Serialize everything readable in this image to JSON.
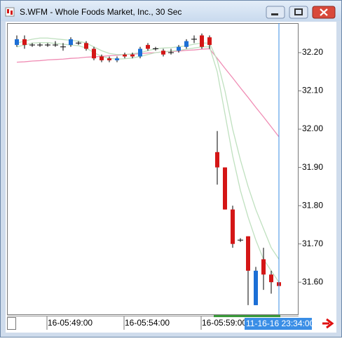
{
  "window": {
    "title": "S.WFM - Whole Foods Market, Inc., 30 Sec"
  },
  "chart_data": {
    "type": "candlestick",
    "categories": [
      null,
      null,
      null,
      null,
      "16-05:49:00",
      null,
      null,
      null,
      null,
      null,
      null,
      null,
      null,
      null,
      "16-05:54:00",
      null,
      null,
      null,
      null,
      null,
      null,
      null,
      null,
      null,
      "16-05:59:00",
      null,
      null,
      null,
      null,
      null,
      null,
      null,
      null,
      null,
      null
    ],
    "open": [
      32.22,
      32.235,
      32.22,
      32.22,
      32.22,
      32.22,
      32.215,
      32.22,
      32.225,
      32.225,
      32.21,
      32.19,
      32.185,
      32.18,
      32.195,
      32.195,
      32.19,
      32.22,
      32.21,
      32.205,
      32.2,
      32.205,
      32.215,
      32.235,
      32.245,
      32.24,
      31.94,
      31.9,
      31.79,
      31.71,
      31.72,
      31.54,
      31.66,
      31.62,
      31.6
    ],
    "high": [
      32.245,
      32.245,
      32.225,
      32.225,
      32.225,
      32.23,
      32.225,
      32.24,
      32.23,
      32.23,
      32.215,
      32.195,
      32.19,
      32.19,
      32.2,
      32.2,
      32.215,
      32.225,
      32.215,
      32.21,
      32.21,
      32.22,
      32.235,
      32.245,
      32.25,
      32.245,
      31.995,
      31.9,
      31.8,
      31.715,
      31.72,
      31.64,
      31.69,
      31.63,
      31.64
    ],
    "low": [
      32.215,
      32.21,
      32.215,
      32.215,
      32.215,
      32.215,
      32.205,
      32.215,
      32.22,
      32.205,
      32.18,
      32.175,
      32.175,
      32.175,
      32.185,
      32.185,
      32.185,
      32.205,
      32.205,
      32.19,
      32.195,
      32.2,
      32.21,
      32.225,
      32.21,
      32.21,
      31.855,
      31.79,
      31.69,
      31.705,
      31.54,
      31.54,
      31.58,
      31.57,
      31.575
    ],
    "close": [
      32.235,
      32.22,
      32.22,
      32.22,
      32.22,
      32.22,
      32.215,
      32.235,
      32.225,
      32.21,
      32.185,
      32.18,
      32.18,
      32.185,
      32.19,
      32.19,
      32.21,
      32.21,
      32.21,
      32.195,
      32.2,
      32.215,
      32.23,
      32.235,
      32.215,
      32.22,
      31.9,
      31.79,
      31.7,
      31.71,
      31.63,
      31.63,
      31.62,
      31.6,
      31.59
    ],
    "up_color": "#1c6fd6",
    "down_color": "#d41616",
    "doji_color": "#000000",
    "overlays": [
      {
        "color": "#f08cb4",
        "values": [
          32.175,
          32.176,
          32.178,
          32.179,
          32.181,
          32.182,
          32.183,
          32.185,
          32.186,
          32.188,
          32.189,
          32.19,
          32.192,
          32.193,
          32.195,
          32.196,
          32.197,
          32.199,
          32.2,
          32.202,
          32.203,
          32.204,
          32.206,
          32.207,
          32.209,
          32.21,
          32.185,
          32.159,
          32.134,
          32.108,
          32.083,
          32.057,
          32.032,
          32.006,
          31.98
        ]
      },
      {
        "color": "#bfe0bf",
        "values": [
          32.225,
          32.23,
          32.235,
          32.238,
          32.238,
          32.236,
          32.234,
          32.232,
          32.23,
          32.225,
          32.215,
          32.205,
          32.198,
          32.195,
          32.195,
          32.197,
          32.2,
          32.205,
          32.21,
          32.212,
          32.213,
          32.215,
          32.218,
          32.222,
          32.225,
          32.225,
          32.18,
          32.1,
          32.0,
          31.92,
          31.85,
          31.79,
          31.74,
          31.69,
          31.66
        ]
      },
      {
        "color": "#bfe0bf",
        "values": [
          32.215,
          32.22,
          32.225,
          32.226,
          32.226,
          32.224,
          32.222,
          32.22,
          32.218,
          32.212,
          32.2,
          32.19,
          32.185,
          32.183,
          32.184,
          32.186,
          32.19,
          32.195,
          32.2,
          32.202,
          32.204,
          32.206,
          32.209,
          32.212,
          32.215,
          32.215,
          32.15,
          32.04,
          31.93,
          31.84,
          31.77,
          31.71,
          31.66,
          31.63,
          31.6
        ]
      }
    ],
    "ylim": [
      31.516,
      32.277
    ],
    "yticks": [
      {
        "value": 31.6,
        "label": "31.60"
      },
      {
        "value": 31.7,
        "label": "31.70"
      },
      {
        "value": 31.8,
        "label": "31.80"
      },
      {
        "value": 31.9,
        "label": "31.90"
      },
      {
        "value": 32.0,
        "label": "32.00"
      },
      {
        "value": 32.1,
        "label": "32.10"
      },
      {
        "value": 32.2,
        "label": "32.20"
      }
    ],
    "cursor_label": "11-16-16 23:34:00",
    "cursor_color": "#3a8ee6"
  }
}
